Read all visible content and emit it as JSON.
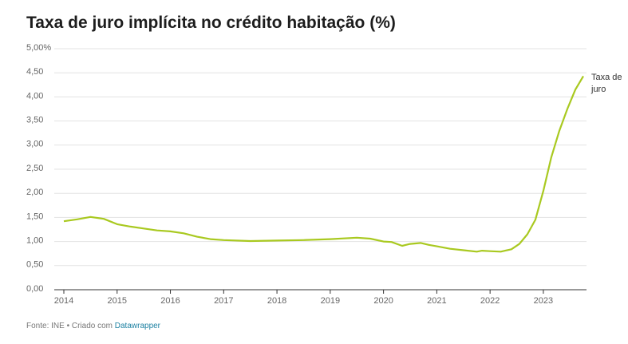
{
  "chart_data": {
    "type": "line",
    "title": "Taxa de juro implícita no crédito habitação (%)",
    "source": "Fonte: INE • Criado com",
    "credit": "Datawrapper",
    "x": [
      2014.0,
      2014.25,
      2014.5,
      2014.75,
      2015.0,
      2015.25,
      2015.5,
      2015.75,
      2016.0,
      2016.25,
      2016.5,
      2016.75,
      2017.0,
      2017.5,
      2018.0,
      2018.5,
      2019.0,
      2019.5,
      2019.75,
      2020.0,
      2020.15,
      2020.35,
      2020.5,
      2020.7,
      2020.85,
      2021.0,
      2021.25,
      2021.5,
      2021.75,
      2021.85,
      2022.0,
      2022.2,
      2022.4,
      2022.55,
      2022.7,
      2022.85,
      2023.0,
      2023.15,
      2023.3,
      2023.45,
      2023.6,
      2023.75
    ],
    "series": [
      {
        "name": "Taxa de juro",
        "color": "#a9c920",
        "values": [
          1.42,
          1.46,
          1.51,
          1.47,
          1.36,
          1.31,
          1.27,
          1.23,
          1.21,
          1.17,
          1.1,
          1.05,
          1.03,
          1.01,
          1.02,
          1.03,
          1.05,
          1.08,
          1.06,
          1.0,
          0.99,
          0.91,
          0.95,
          0.97,
          0.93,
          0.9,
          0.85,
          0.82,
          0.79,
          0.81,
          0.8,
          0.79,
          0.84,
          0.95,
          1.15,
          1.45,
          2.05,
          2.75,
          3.3,
          3.75,
          4.15,
          4.43
        ]
      }
    ],
    "xlim": [
      2014,
      2023.75
    ],
    "xticks": [
      2014,
      2015,
      2016,
      2017,
      2018,
      2019,
      2020,
      2021,
      2022,
      2023
    ],
    "ylim": [
      0,
      5
    ],
    "yticks": [
      {
        "value": 0,
        "label": "0,00"
      },
      {
        "value": 0.5,
        "label": "0,50"
      },
      {
        "value": 1,
        "label": "1,00"
      },
      {
        "value": 1.5,
        "label": "1,50"
      },
      {
        "value": 2,
        "label": "2,00"
      },
      {
        "value": 2.5,
        "label": "2,50"
      },
      {
        "value": 3,
        "label": "3,00"
      },
      {
        "value": 3.5,
        "label": "3,50"
      },
      {
        "value": 4,
        "label": "4,00"
      },
      {
        "value": 4.5,
        "label": "4,50"
      },
      {
        "value": 5,
        "label": "5,00%"
      }
    ],
    "grid": true
  }
}
